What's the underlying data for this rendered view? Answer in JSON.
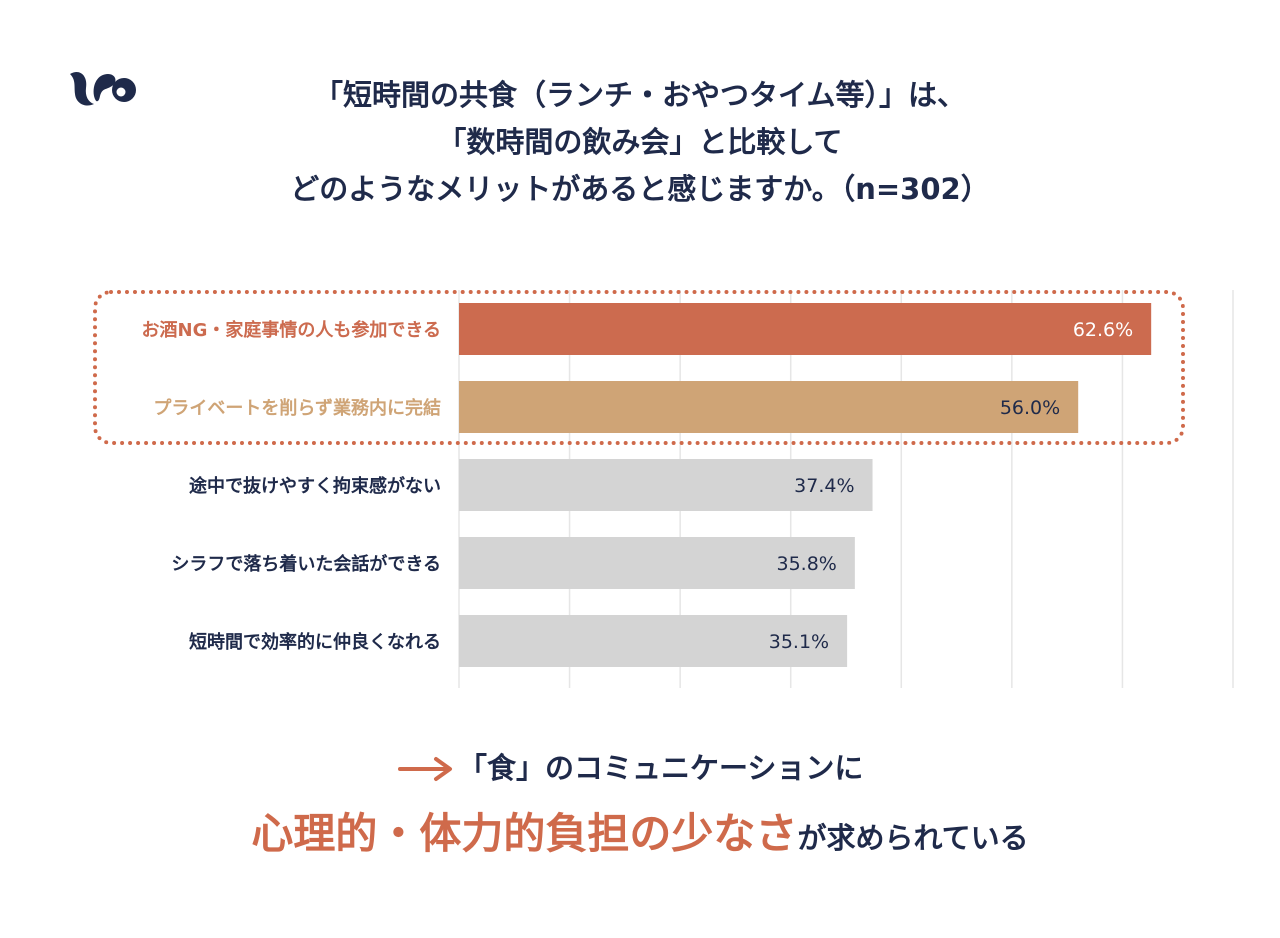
{
  "title": {
    "line1": "「短時間の共食（ランチ・おやつタイム等）」は、",
    "line2": "「数時間の飲み会」と比較して",
    "line3": "どのようなメリットがあると感じますか。（n=302）"
  },
  "chart_data": {
    "type": "bar",
    "orientation": "horizontal",
    "categories": [
      "お酒NG・家庭事情の人も参加できる",
      "プライベートを削らず業務内に完結",
      "途中で抜けやすく拘束感がない",
      "シラフで落ち着いた会話ができる",
      "短時間で効率的に仲良くなれる"
    ],
    "values": [
      62.6,
      56.0,
      37.4,
      35.8,
      35.1
    ],
    "value_labels": [
      "62.6%",
      "56.0%",
      "37.4%",
      "35.8%",
      "35.1%"
    ],
    "xlim": [
      0,
      70
    ],
    "grid": true,
    "highlighted": [
      0,
      1
    ],
    "colors": [
      "#cc6b4f",
      "#cfa476",
      "#d4d4d4",
      "#d4d4d4",
      "#d4d4d4"
    ],
    "label_colors": [
      "#cc6b4f",
      "#cfa476",
      "#1f2a4a",
      "#1f2a4a",
      "#1f2a4a"
    ],
    "value_label_colors": [
      "#ffffff",
      "#1f2a4a",
      "#1f2a4a",
      "#1f2a4a",
      "#1f2a4a"
    ]
  },
  "conclusion": {
    "line1": "「食」のコミュニケーションに",
    "line2_emphasis": "心理的・体力的負担の少なさ",
    "line2_rest": "が求められている"
  },
  "colors": {
    "accent": "#cf6a4b",
    "navy": "#1f2a4a",
    "grid": "#e6e6e6"
  },
  "icons": {
    "logo": "brand-logo-icon",
    "arrow": "right-arrow-icon"
  }
}
